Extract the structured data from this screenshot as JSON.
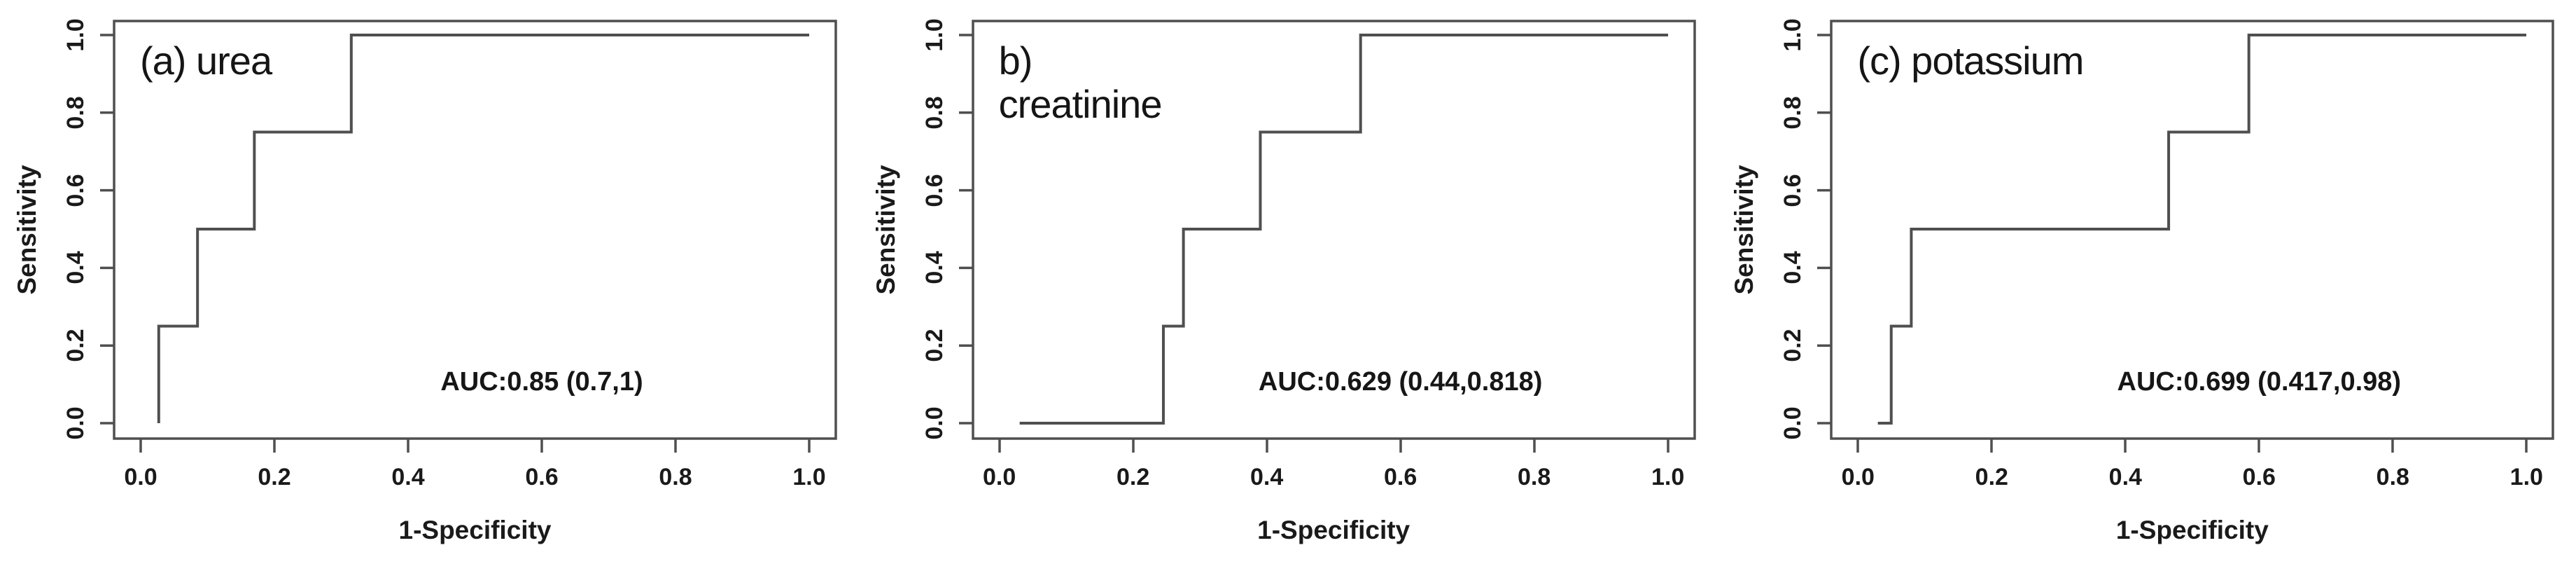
{
  "figure": {
    "kind": "roc-curves",
    "background": "#ffffff",
    "line_color": "#4f4f4f",
    "text_color": "#1a1a1a"
  },
  "chart_data": [
    {
      "type": "line",
      "title": "(a) urea",
      "xlabel": "1-Specificity",
      "ylabel": "Sensitivity",
      "auc_label": "AUC:0.85 (0.7,1)",
      "auc": 0.85,
      "auc_ci": [
        0.7,
        1
      ],
      "xlim": [
        0,
        1
      ],
      "ylim": [
        0,
        1
      ],
      "grid": false,
      "x_ticks": [
        "0.0",
        "0.2",
        "0.4",
        "0.6",
        "0.8",
        "1.0"
      ],
      "y_ticks": [
        "0.0",
        "0.2",
        "0.4",
        "0.6",
        "0.8",
        "1.0"
      ],
      "curve": {
        "x": [
          0.027,
          0.027,
          0.085,
          0.085,
          0.17,
          0.17,
          0.315,
          0.315,
          1.0
        ],
        "y": [
          0.0,
          0.25,
          0.25,
          0.5,
          0.5,
          0.75,
          0.75,
          1.0,
          1.0
        ]
      }
    },
    {
      "type": "line",
      "title": "b)\ncreatinine",
      "xlabel": "1-Specificity",
      "ylabel": "Sensitivity",
      "auc_label": "AUC:0.629 (0.44,0.818)",
      "auc": 0.629,
      "auc_ci": [
        0.44,
        0.818
      ],
      "xlim": [
        0,
        1
      ],
      "ylim": [
        0,
        1
      ],
      "grid": false,
      "x_ticks": [
        "0.0",
        "0.2",
        "0.4",
        "0.6",
        "0.8",
        "1.0"
      ],
      "y_ticks": [
        "0.0",
        "0.2",
        "0.4",
        "0.6",
        "0.8",
        "1.0"
      ],
      "curve": {
        "x": [
          0.03,
          0.245,
          0.245,
          0.275,
          0.275,
          0.39,
          0.39,
          0.54,
          0.54,
          1.0
        ],
        "y": [
          0.0,
          0.0,
          0.25,
          0.25,
          0.5,
          0.5,
          0.75,
          0.75,
          1.0,
          1.0
        ]
      }
    },
    {
      "type": "line",
      "title": "(c) potassium",
      "xlabel": "1-Specificity",
      "ylabel": "Sensitivity",
      "auc_label": "AUC:0.699 (0.417,0.98)",
      "auc": 0.699,
      "auc_ci": [
        0.417,
        0.98
      ],
      "xlim": [
        0,
        1
      ],
      "ylim": [
        0,
        1
      ],
      "grid": false,
      "x_ticks": [
        "0.0",
        "0.2",
        "0.4",
        "0.6",
        "0.8",
        "1.0"
      ],
      "y_ticks": [
        "0.0",
        "0.2",
        "0.4",
        "0.6",
        "0.8",
        "1.0"
      ],
      "curve": {
        "x": [
          0.03,
          0.05,
          0.05,
          0.08,
          0.08,
          0.465,
          0.465,
          0.585,
          0.585,
          1.0
        ],
        "y": [
          0.0,
          0.0,
          0.25,
          0.25,
          0.5,
          0.5,
          0.75,
          0.75,
          1.0,
          1.0
        ]
      }
    }
  ]
}
